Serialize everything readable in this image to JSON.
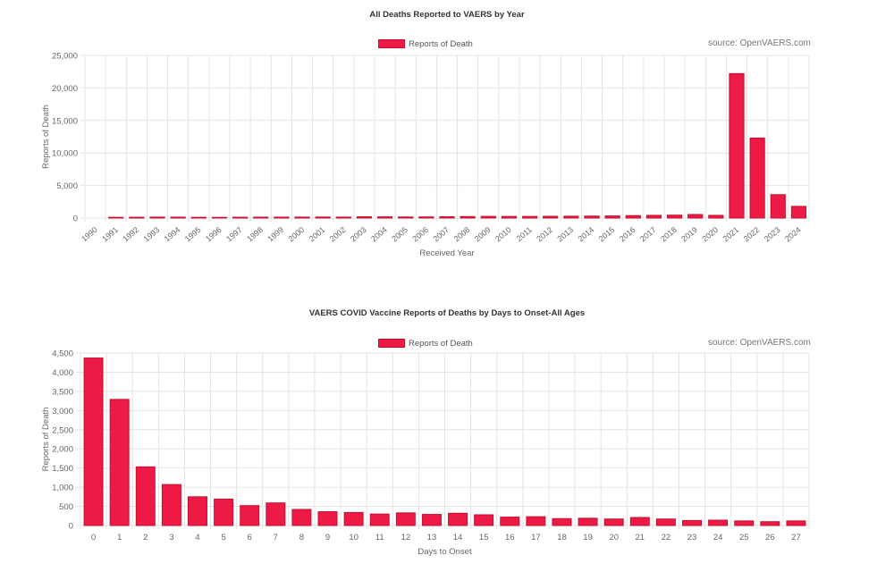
{
  "chart_data": [
    {
      "type": "bar",
      "title": "All Deaths Reported to VAERS by Year",
      "xlabel": "Received Year",
      "ylabel": "Reports of Death",
      "legend": "Reports of Death",
      "source": "source: OpenVAERS.com",
      "ylim": [
        0,
        25000
      ],
      "yticks": [
        0,
        5000,
        10000,
        15000,
        20000,
        25000
      ],
      "ytick_labels": [
        "0",
        "5,000",
        "10,000",
        "15,000",
        "20,000",
        "25,000"
      ],
      "bar_color": "#ec1a45",
      "categories": [
        "1990",
        "1991",
        "1992",
        "1993",
        "1994",
        "1995",
        "1996",
        "1997",
        "1998",
        "1999",
        "2000",
        "2001",
        "2002",
        "2003",
        "2004",
        "2005",
        "2006",
        "2007",
        "2008",
        "2009",
        "2010",
        "2011",
        "2012",
        "2013",
        "2014",
        "2015",
        "2016",
        "2017",
        "2018",
        "2019",
        "2020",
        "2021",
        "2022",
        "2023",
        "2024"
      ],
      "values": [
        0,
        120,
        130,
        150,
        140,
        120,
        110,
        130,
        140,
        140,
        150,
        160,
        150,
        200,
        190,
        170,
        180,
        200,
        230,
        260,
        250,
        250,
        270,
        290,
        310,
        330,
        380,
        420,
        450,
        550,
        420,
        22200,
        12300,
        3600,
        1800
      ]
    },
    {
      "type": "bar",
      "title": "VAERS COVID Vaccine Reports of Deaths by Days to Onset-All Ages",
      "xlabel": "Days to Onset",
      "ylabel": "Reports of Death",
      "legend": "Reports of Death",
      "source": "source: OpenVAERS.com",
      "ylim": [
        0,
        4500
      ],
      "yticks": [
        0,
        500,
        1000,
        1500,
        2000,
        2500,
        3000,
        3500,
        4000,
        4500
      ],
      "ytick_labels": [
        "0",
        "500",
        "1,000",
        "1,500",
        "2,000",
        "2,500",
        "3,000",
        "3,500",
        "4,000",
        "4,500"
      ],
      "bar_color": "#ec1a45",
      "categories": [
        "0",
        "1",
        "2",
        "3",
        "4",
        "5",
        "6",
        "7",
        "8",
        "9",
        "10",
        "11",
        "12",
        "13",
        "14",
        "15",
        "16",
        "17",
        "18",
        "19",
        "20",
        "21",
        "22",
        "23",
        "24",
        "25",
        "26",
        "27"
      ],
      "values": [
        4370,
        3290,
        1530,
        1070,
        750,
        690,
        520,
        590,
        420,
        360,
        340,
        300,
        330,
        290,
        320,
        280,
        220,
        230,
        180,
        190,
        170,
        210,
        170,
        130,
        140,
        120,
        100,
        120
      ]
    }
  ]
}
